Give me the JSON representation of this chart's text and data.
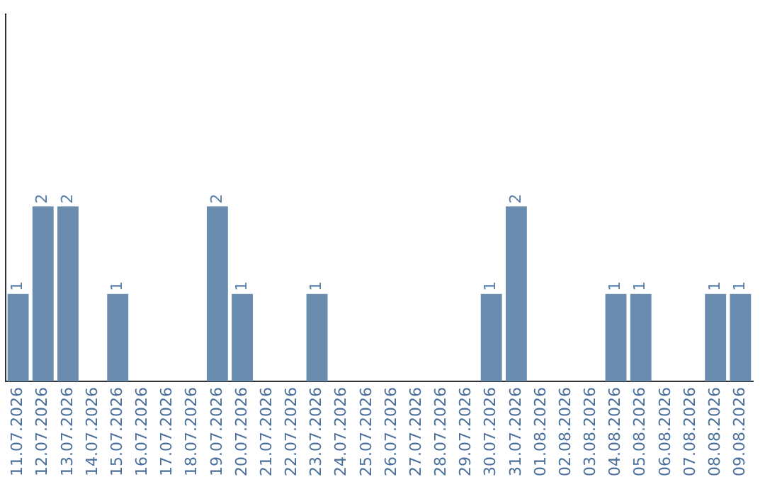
{
  "chart_data": {
    "type": "bar",
    "categories": [
      "11.07.2026",
      "12.07.2026",
      "13.07.2026",
      "14.07.2026",
      "15.07.2026",
      "16.07.2026",
      "17.07.2026",
      "18.07.2026",
      "19.07.2026",
      "20.07.2026",
      "21.07.2026",
      "22.07.2026",
      "23.07.2026",
      "24.07.2026",
      "25.07.2026",
      "26.07.2026",
      "27.07.2026",
      "28.07.2026",
      "29.07.2026",
      "30.07.2026",
      "31.07.2026",
      "01.08.2026",
      "02.08.2026",
      "03.08.2026",
      "04.08.2026",
      "05.08.2026",
      "06.08.2026",
      "07.08.2026",
      "08.08.2026",
      "09.08.2026"
    ],
    "values": [
      1,
      2,
      2,
      0,
      1,
      0,
      0,
      0,
      2,
      1,
      0,
      0,
      1,
      0,
      0,
      0,
      0,
      0,
      0,
      1,
      2,
      0,
      0,
      0,
      1,
      1,
      0,
      0,
      1,
      1
    ],
    "value_labels": [
      "1",
      "2",
      "2",
      null,
      "1",
      null,
      null,
      null,
      "2",
      "1",
      null,
      null,
      "1",
      null,
      null,
      null,
      null,
      null,
      null,
      "1",
      "2",
      null,
      null,
      null,
      "1",
      "1",
      null,
      null,
      "1",
      "1"
    ],
    "color": "#6a8caf",
    "ylim": [
      0,
      4.2
    ],
    "tick_labels": "x",
    "grid": false,
    "legend": false
  }
}
